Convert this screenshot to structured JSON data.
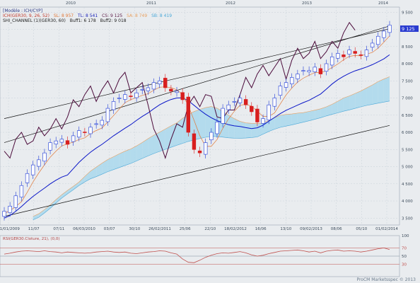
{
  "legend": {
    "model": "[Modèle : ICH/CYP]",
    "ichimoku": {
      "name": "ICH(GER30, 9, 26, 52)",
      "sl": "SL: 8 957",
      "tl": "TL: 8 541",
      "cs": "CS: 9 125",
      "sa": "SA: 8 749",
      "sb": "SB: 8 419"
    },
    "channel": {
      "name": "SHI_CHANNEL (1)(GER30, 60)",
      "buff1": "Buff1: 6 178",
      "buff2": "Buff2: 9 018"
    }
  },
  "rsi_label": "RSI(GER30.Cloture, 21), (0,0)",
  "footer": "ProCM Marketsspec © 2013",
  "price_tag": "9 125",
  "colors": {
    "bg": "#e9ecef",
    "grid": "#c9d2da",
    "up": "#1f3bd6",
    "down": "#d81e1e",
    "tl": "#0a16c8",
    "sl": "#e0793a",
    "cs": "#4b0a3a",
    "cloudBull": "#a9d8ec",
    "cloudBear": "#f5c9a4",
    "channel": "#111111",
    "rsi": "#c0504d"
  },
  "chart_data": {
    "type": "candlestick",
    "years": [
      "2010",
      "2011",
      "2012",
      "2013",
      "2014"
    ],
    "x_ticks": [
      "31/01/2009",
      "11/07",
      "07/11",
      "06/03/2010",
      "03/07",
      "30/10",
      "26/02/2011",
      "25/06",
      "22/10",
      "18/02/2012",
      "16/06",
      "13/10",
      "09/02/2013",
      "08/06",
      "05/10",
      "01/02/2014"
    ],
    "y_ticks": [
      3500,
      4000,
      4500,
      5000,
      5500,
      6000,
      6500,
      7000,
      7500,
      8000,
      8500,
      9000,
      9500
    ],
    "ylim": [
      3300,
      9650
    ],
    "close": [
      3700,
      3850,
      4150,
      4450,
      4800,
      5050,
      5200,
      5400,
      5700,
      5750,
      5800,
      5650,
      5900,
      6050,
      6000,
      6150,
      6250,
      6350,
      6700,
      6900,
      7000,
      7100,
      7050,
      7150,
      7250,
      7300,
      7450,
      7500,
      7300,
      7200,
      7200,
      6950,
      6000,
      5500,
      5400,
      5700,
      6000,
      6300,
      6700,
      6800,
      6900,
      7000,
      6800,
      6600,
      6300,
      6400,
      6800,
      7000,
      7350,
      7450,
      7600,
      7700,
      7800,
      7800,
      7900,
      7700,
      8000,
      8200,
      8300,
      8200,
      8400,
      8300,
      8250,
      8400,
      8600,
      8800,
      8950,
      9125
    ],
    "channel_lower": [
      3550,
      6200
    ],
    "channel_upper": [
      6400,
      9020
    ],
    "channel_mid": [
      5700,
      9100
    ],
    "rsi": {
      "ylim": [
        0,
        100
      ],
      "levels": [
        30,
        50,
        70
      ],
      "values": [
        55,
        57,
        60,
        62,
        63,
        62,
        61,
        63,
        61,
        60,
        58,
        60,
        59,
        58,
        57,
        58,
        60,
        61,
        62,
        60,
        59,
        60,
        57,
        56,
        58,
        60,
        61,
        63,
        62,
        58,
        55,
        43,
        35,
        34,
        40,
        47,
        52,
        56,
        58,
        57,
        59,
        61,
        58,
        53,
        50,
        52,
        56,
        59,
        62,
        63,
        64,
        65,
        63,
        60,
        62,
        58,
        62,
        64,
        65,
        62,
        63,
        62,
        60,
        62,
        65,
        68,
        70,
        66
      ]
    },
    "rsi_ticks": [
      100,
      70,
      50,
      30
    ]
  }
}
